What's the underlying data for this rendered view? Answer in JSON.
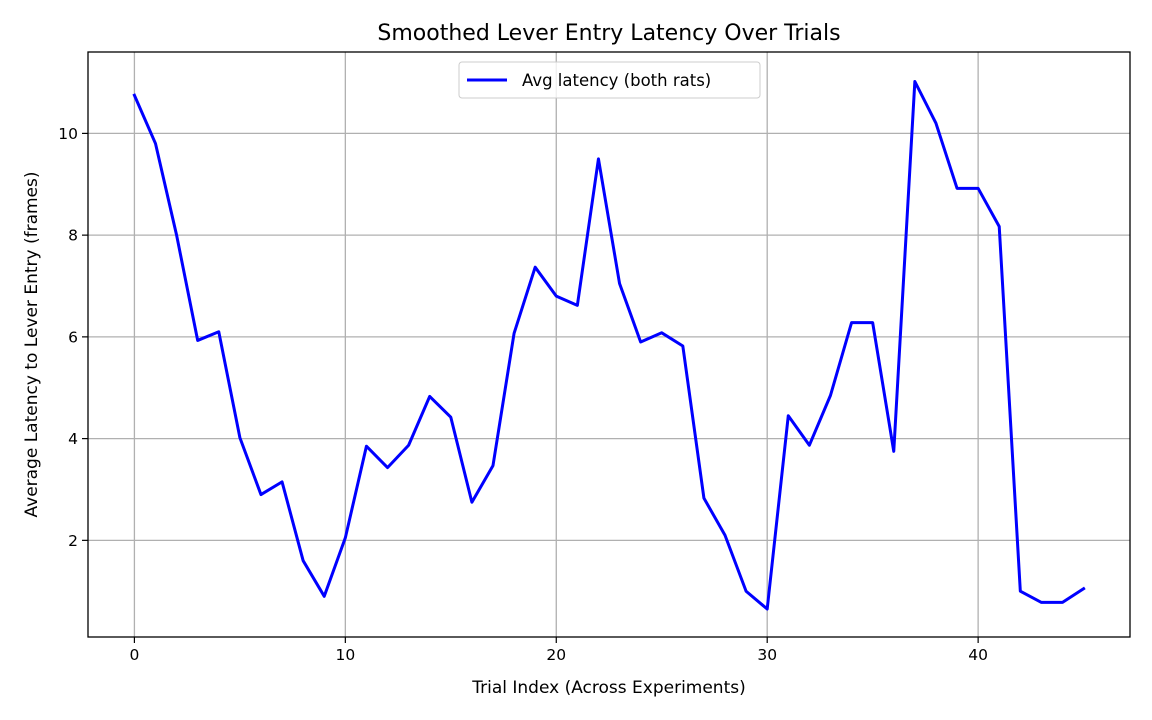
{
  "chart_data": {
    "type": "line",
    "title": "Smoothed Lever Entry Latency Over Trials",
    "xlabel": "Trial Index (Across Experiments)",
    "ylabel": "Average Latency to Lever Entry (frames)",
    "xlim": [
      -2.2,
      47.2
    ],
    "ylim": [
      0.1,
      11.6
    ],
    "x_ticks": [
      0,
      10,
      20,
      30,
      40
    ],
    "y_ticks": [
      2,
      4,
      6,
      8,
      10
    ],
    "grid": true,
    "legend_position": "top-center",
    "series": [
      {
        "name": "Avg latency (both rats)",
        "color": "#0000ff",
        "x": [
          0,
          1,
          2,
          3,
          4,
          5,
          6,
          7,
          8,
          9,
          10,
          11,
          12,
          13,
          14,
          15,
          16,
          17,
          18,
          19,
          20,
          21,
          22,
          23,
          24,
          25,
          26,
          27,
          28,
          29,
          30,
          31,
          32,
          33,
          34,
          35,
          36,
          37,
          38,
          39,
          40,
          41,
          42,
          43,
          44,
          45
        ],
        "y": [
          10.75,
          9.8,
          8.0,
          5.93,
          6.1,
          4.02,
          2.9,
          3.15,
          1.6,
          0.9,
          2.05,
          3.85,
          3.43,
          3.87,
          4.83,
          4.42,
          2.75,
          3.47,
          6.07,
          7.37,
          6.8,
          6.62,
          9.5,
          7.05,
          5.9,
          6.08,
          5.82,
          2.83,
          2.1,
          1.0,
          0.65,
          4.45,
          3.87,
          4.85,
          6.28,
          6.28,
          3.75,
          11.02,
          10.2,
          8.92,
          8.92,
          8.17,
          1.0,
          0.78,
          0.78,
          1.05
        ]
      }
    ]
  }
}
